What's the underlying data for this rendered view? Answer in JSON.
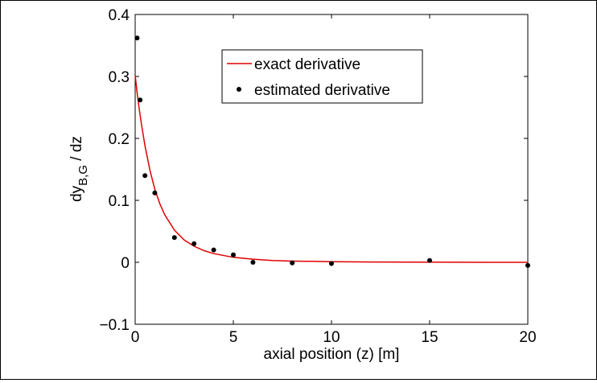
{
  "chart_data": {
    "type": "line+scatter",
    "xlabel": "axial position (z) [m]",
    "ylabel": {
      "main": "dy",
      "subscript": "B,G",
      "suffix": " / dz"
    },
    "xlim": [
      0,
      20
    ],
    "ylim": [
      -0.1,
      0.4
    ],
    "xticks": [
      0,
      5,
      10,
      15,
      20
    ],
    "xtick_labels": [
      "0",
      "5",
      "10",
      "15",
      "20"
    ],
    "yticks": [
      -0.1,
      0,
      0.1,
      0.2,
      0.3,
      0.4
    ],
    "ytick_labels": [
      "−0.1",
      "0",
      "0.1",
      "0.2",
      "0.3",
      "0.4"
    ],
    "grid": false,
    "legend_position": "top-center",
    "series": [
      {
        "name": "exact derivative",
        "kind": "line",
        "color": "#e00000",
        "x": [
          0,
          0.1,
          0.2,
          0.3,
          0.5,
          0.75,
          1,
          1.25,
          1.5,
          2,
          2.5,
          3,
          3.5,
          4,
          5,
          6,
          7,
          8,
          9,
          10,
          12,
          14,
          16,
          18,
          20
        ],
        "y": [
          0.302,
          0.274,
          0.249,
          0.227,
          0.188,
          0.149,
          0.118,
          0.095,
          0.077,
          0.052,
          0.036,
          0.026,
          0.019,
          0.014,
          0.008,
          0.005,
          0.003,
          0.002,
          0.0015,
          0.001,
          0.0005,
          0.0002,
          0.0001,
          0.0,
          0.0
        ]
      },
      {
        "name": "estimated derivative",
        "kind": "scatter",
        "color": "#000000",
        "x": [
          0.1,
          0.25,
          0.5,
          1,
          2,
          3,
          4,
          5,
          6,
          8,
          10,
          15,
          20
        ],
        "y": [
          0.362,
          0.262,
          0.14,
          0.112,
          0.04,
          0.03,
          0.02,
          0.012,
          0.0,
          -0.001,
          -0.002,
          0.003,
          -0.005
        ]
      }
    ]
  }
}
